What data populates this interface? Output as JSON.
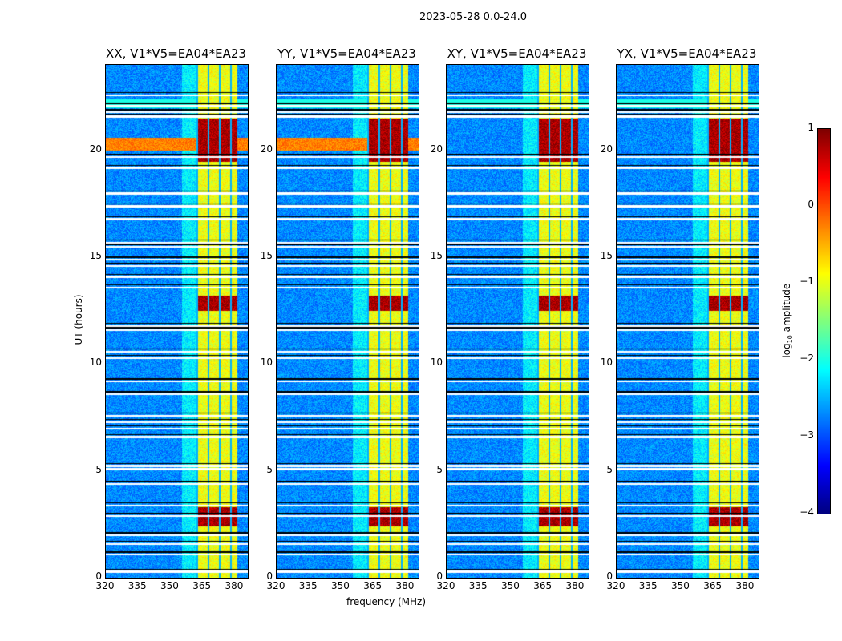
{
  "chart_data": {
    "type": "heatmap",
    "title": "2023-05-28 0.0-24.0",
    "xlabel": "frequency (MHz)",
    "ylabel": "UT (hours)",
    "xlim": [
      320,
      386
    ],
    "ylim": [
      0,
      24
    ],
    "xticks": [
      "320",
      "335",
      "350",
      "365",
      "380"
    ],
    "yticks": [
      "0",
      "5",
      "10",
      "15",
      "20"
    ],
    "panels": [
      {
        "title": "XX, V1*V5=EA04*EA23"
      },
      {
        "title": "YY, V1*V5=EA04*EA23"
      },
      {
        "title": "XY, V1*V5=EA04*EA23"
      },
      {
        "title": "YX, V1*V5=EA04*EA23"
      }
    ],
    "rfi_band_mhz": [
      362,
      381
    ],
    "rfi_strong_hours": [
      [
        19.5,
        21.5
      ],
      [
        12.5,
        13.2
      ],
      [
        2.4,
        3.3
      ]
    ],
    "flagged_hours": [
      0.3,
      1.1,
      1.6,
      2.0,
      2.9,
      3.4,
      4.4,
      5.1,
      5.25,
      6.6,
      7.0,
      7.3,
      7.6,
      8.6,
      9.2,
      10.3,
      10.6,
      11.6,
      11.8,
      13.6,
      14.1,
      14.6,
      14.9,
      15.5,
      15.7,
      16.8,
      17.4,
      18.0,
      19.2,
      19.7,
      21.6,
      21.8,
      22.1,
      22.6
    ],
    "colorbar": {
      "label": "log10 amplitude",
      "range": [
        -4,
        1
      ],
      "ticks": [
        "1",
        "0",
        "−1",
        "−2",
        "−3",
        "−4"
      ],
      "colormap": "jet"
    }
  }
}
